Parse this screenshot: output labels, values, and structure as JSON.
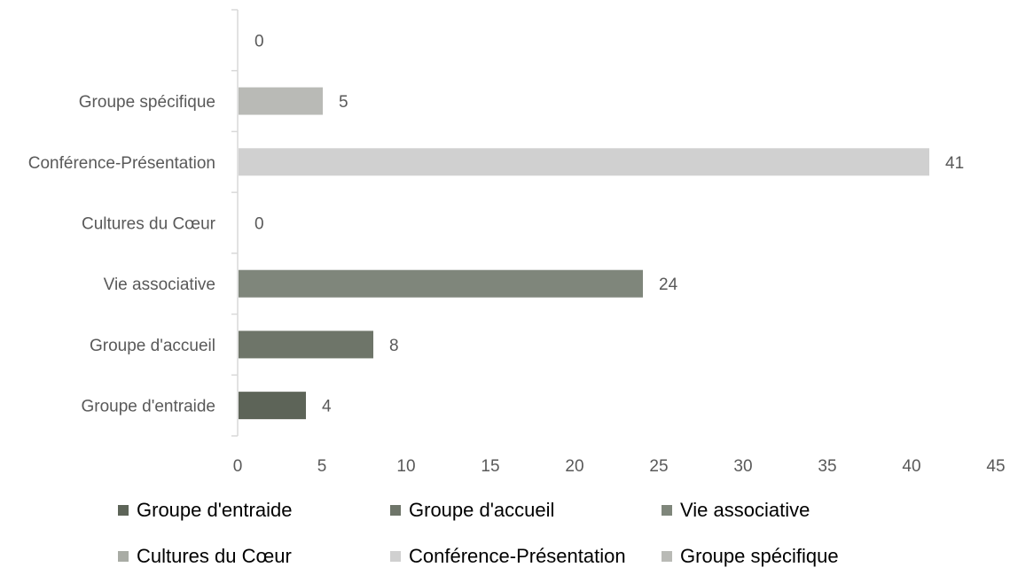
{
  "chart_data": {
    "type": "bar",
    "orientation": "horizontal",
    "categories": [
      "",
      "Groupe spécifique",
      "Conférence-Présentation",
      "Cultures du Cœur",
      "Vie associative",
      "Groupe d'accueil",
      "Groupe d'entraide"
    ],
    "values": [
      0,
      5,
      41,
      0,
      24,
      8,
      4
    ],
    "bar_colors": [
      "#cfcfcf",
      "#b9bab6",
      "#d0d0d0",
      "#a9aca5",
      "#7f867b",
      "#6e7569",
      "#5d6458"
    ],
    "x_ticks": [
      "0",
      "5",
      "10",
      "15",
      "20",
      "25",
      "30",
      "35",
      "40",
      "45"
    ],
    "xlim": [
      0,
      45
    ],
    "grid": false,
    "legend": {
      "placement": "bottom",
      "items": [
        {
          "label": "Groupe d'entraide",
          "color": "#5d6458"
        },
        {
          "label": "Groupe d'accueil",
          "color": "#6e7569"
        },
        {
          "label": "Vie associative",
          "color": "#7f867b"
        },
        {
          "label": "Cultures du Cœur",
          "color": "#a9aca5"
        },
        {
          "label": "Conférence-Présentation",
          "color": "#d0d0d0"
        },
        {
          "label": "Groupe spécifique",
          "color": "#b9bab6"
        }
      ]
    }
  }
}
